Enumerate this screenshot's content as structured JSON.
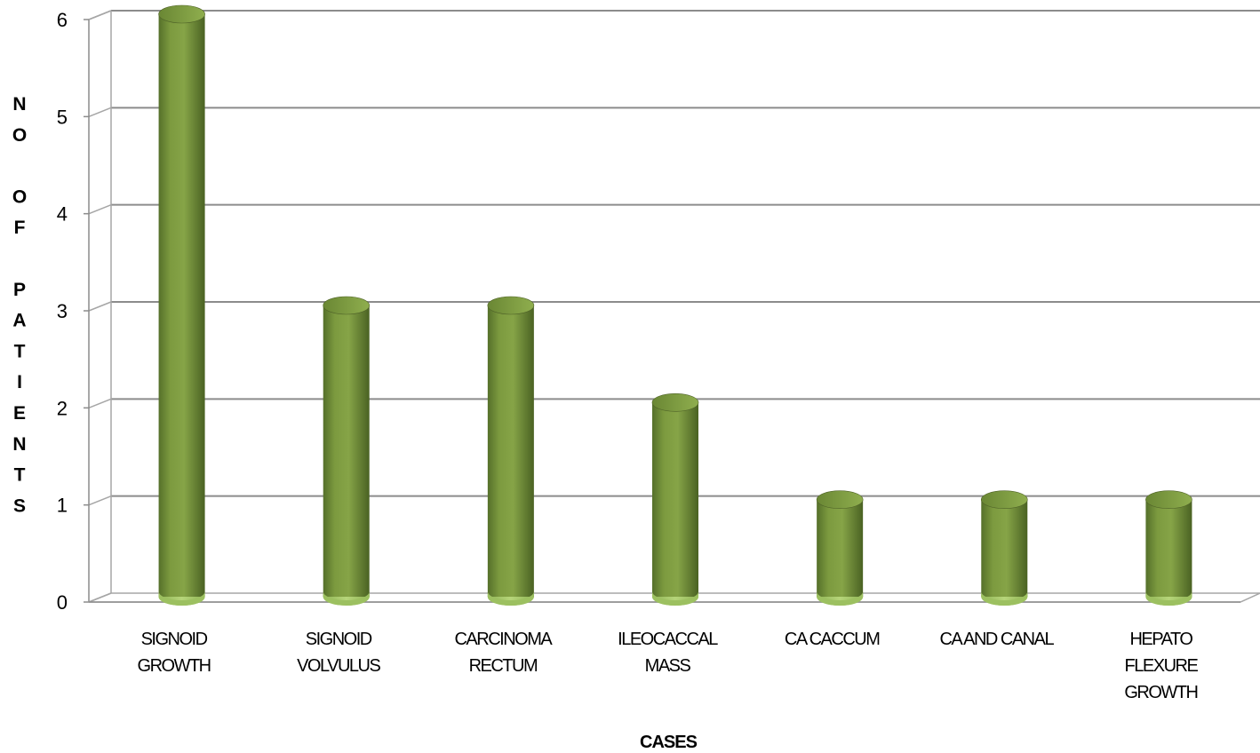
{
  "chart_data": {
    "type": "bar",
    "title": "",
    "xlabel": "CASES",
    "ylabel": "NO OF PATIENTS",
    "ylabel_lines": [
      "N",
      "O",
      "",
      "O",
      "F",
      "",
      "P",
      "A",
      "T",
      "I",
      "E",
      "N",
      "T",
      "S"
    ],
    "ylim": [
      0,
      6
    ],
    "yticks": [
      "0",
      "1",
      "2",
      "3",
      "4",
      "5",
      "6"
    ],
    "grid": true,
    "categories": [
      [
        "SIGNOID",
        "GROWTH"
      ],
      [
        "SIGNOID",
        "VOLVULUS"
      ],
      [
        "CARCINOMA",
        "RECTUM"
      ],
      [
        "ILEOCACCAL",
        "MASS"
      ],
      [
        "CA CACCUM"
      ],
      [
        "CA AND CANAL"
      ],
      [
        "HEPATO",
        "FLEXURE",
        "GROWTH"
      ]
    ],
    "values": [
      6,
      3,
      3,
      2,
      1,
      1,
      1
    ],
    "colors": {
      "bar": "#77933c",
      "bar_light": "#9bbb59",
      "bar_dark": "#4f6228",
      "grid": "#8c8c8c"
    }
  }
}
